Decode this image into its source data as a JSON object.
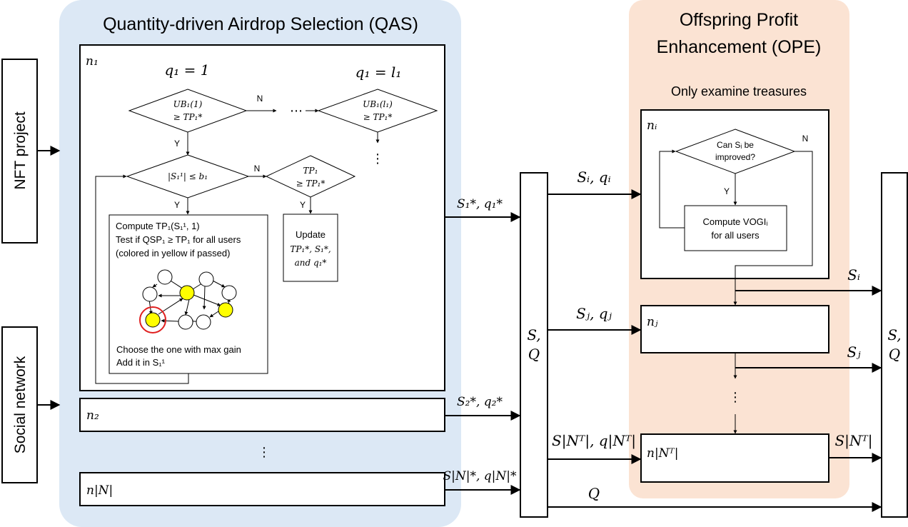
{
  "qas": {
    "title": "Quantity-driven Airdrop Selection (QAS)",
    "node_1": "n₁",
    "node_2": "n₂",
    "node_N": "n|N|",
    "q_first": "q₁ = 1",
    "q_last": "q₁ = l₁",
    "ub1_line1": "UB₁(1)",
    "ub1_line2": "≥ TP₁*",
    "ubl_line1": "UB₁(l₁)",
    "ubl_line2": "≥ TP₁*",
    "budget_check": "|S₁¹| ≤ b₁",
    "tp_line1": "TP₁",
    "tp_line2": "≥ TP₁*",
    "compute_1": "Compute TP₁(S₁¹, 1)",
    "compute_2": "Test if QSP₁ ≥ TP₁ for all users",
    "compute_3": "(colored in yellow if passed)",
    "choose_1": "Choose the one with max gain",
    "choose_2": "Add it in S₁¹",
    "update_1": "Update",
    "update_2": "TP₁*, S₁*,",
    "update_3": "and q₁*",
    "yes": "Y",
    "no": "N",
    "hdots": "⋯",
    "vdots": "⋮"
  },
  "inputs": {
    "nft_project": "NFT project",
    "social_network": "Social network"
  },
  "flows": {
    "s1q1": "S₁*, q₁*",
    "s2q2": "S₂*, q₂*",
    "sNqN": "S|N|*, q|N|*",
    "siqi": "Sᵢ, qᵢ",
    "sjqj": "Sⱼ, qⱼ",
    "sNTqNT": "S|Nᵀ|, q|Nᵀ|",
    "si_out": "Sᵢ",
    "sj_out": "Sⱼ",
    "sNT_out": "S|Nᵀ|",
    "q_out": "Q"
  },
  "collector": {
    "left_line1": "S,",
    "left_line2": "Q",
    "right_line1": "S,",
    "right_line2": "Q"
  },
  "ope": {
    "title_1": "Offspring Profit",
    "title_2": "Enhancement (OPE)",
    "subtitle": "Only examine treasures",
    "node_i": "nᵢ",
    "node_j": "nⱼ",
    "node_NT": "n|Nᵀ|",
    "can_1": "Can Sᵢ be",
    "can_2": "improved?",
    "vogi_1": "Compute VOGIᵢ",
    "vogi_2": "for all users",
    "yes": "Y",
    "no": "N",
    "vdots": "⋮"
  },
  "colors": {
    "qas_bg": "#dce8f5",
    "ope_bg": "#fbe3d3",
    "passed_user": "#ffff00",
    "selected_ring": "#e02020"
  }
}
